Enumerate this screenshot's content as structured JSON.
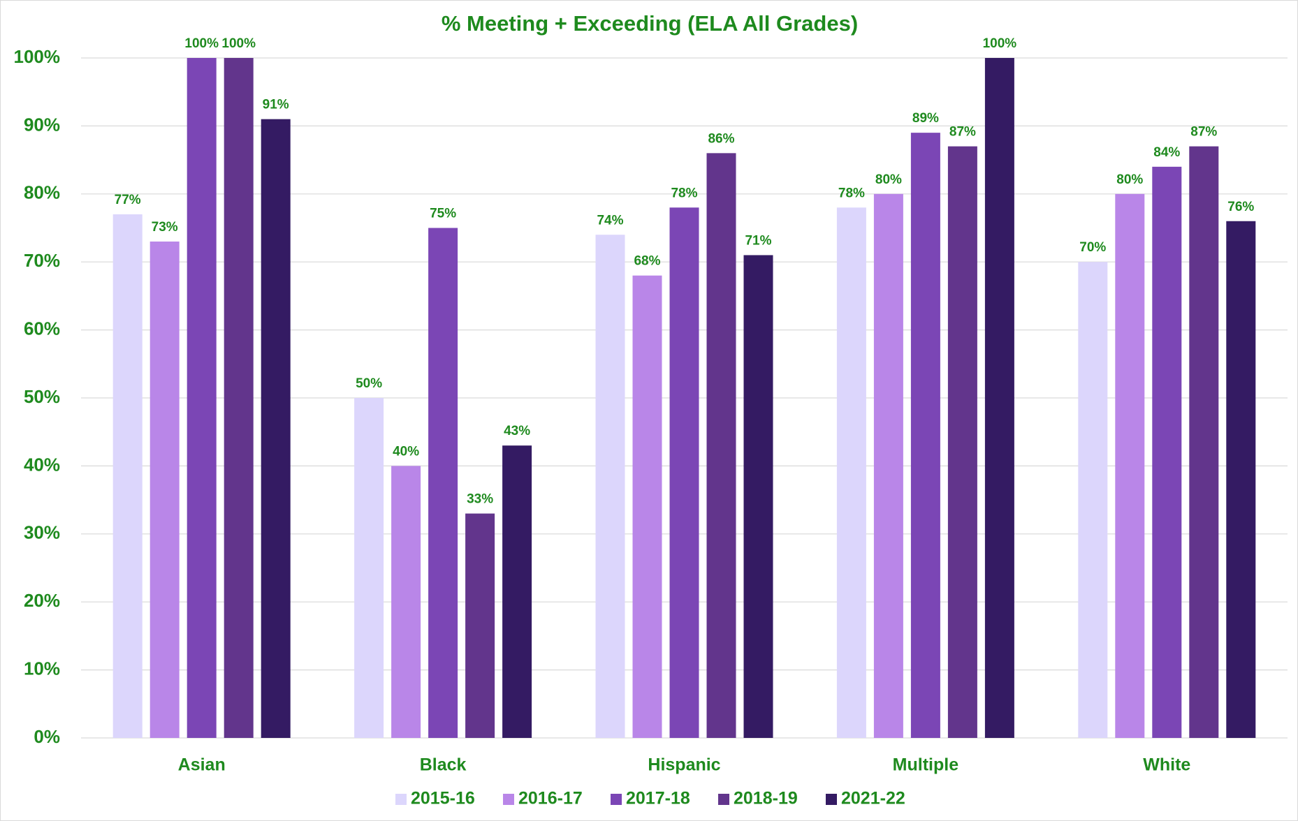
{
  "chart_data": {
    "type": "bar",
    "title": "% Meeting + Exceeding (ELA All Grades)",
    "categories": [
      "Asian",
      "Black",
      "Hispanic",
      "Multiple",
      "White"
    ],
    "series": [
      {
        "name": "2015-16",
        "color": "#dcd6fc",
        "values": [
          77,
          50,
          74,
          78,
          70
        ],
        "value_labels": [
          "77%",
          "50%",
          "74%",
          "78%",
          "70%"
        ]
      },
      {
        "name": "2016-17",
        "color": "#b986e8",
        "values": [
          73,
          40,
          68,
          80,
          80
        ],
        "value_labels": [
          "73%",
          "40%",
          "68%",
          "80%",
          "80%"
        ]
      },
      {
        "name": "2017-18",
        "color": "#7b46b5",
        "values": [
          100,
          75,
          78,
          89,
          84
        ],
        "value_labels": [
          "100%",
          "75%",
          "78%",
          "89%",
          "84%"
        ]
      },
      {
        "name": "2018-19",
        "color": "#62358c",
        "values": [
          100,
          33,
          86,
          87,
          87
        ],
        "value_labels": [
          "100%",
          "33%",
          "86%",
          "87%",
          "87%"
        ]
      },
      {
        "name": "2021-22",
        "color": "#341b63",
        "values": [
          91,
          43,
          71,
          100,
          76
        ],
        "value_labels": [
          "91%",
          "43%",
          "71%",
          "100%",
          "76%"
        ]
      }
    ],
    "ylim": [
      0,
      100
    ],
    "yticks": [
      {
        "value": 0,
        "label": "0%"
      },
      {
        "value": 10,
        "label": "10%"
      },
      {
        "value": 20,
        "label": "20%"
      },
      {
        "value": 30,
        "label": "30%"
      },
      {
        "value": 40,
        "label": "40%"
      },
      {
        "value": 50,
        "label": "50%"
      },
      {
        "value": 60,
        "label": "60%"
      },
      {
        "value": 70,
        "label": "70%"
      },
      {
        "value": 80,
        "label": "80%"
      },
      {
        "value": 90,
        "label": "90%"
      },
      {
        "value": 100,
        "label": "100%"
      }
    ],
    "grid": true,
    "legend": "bottom"
  }
}
